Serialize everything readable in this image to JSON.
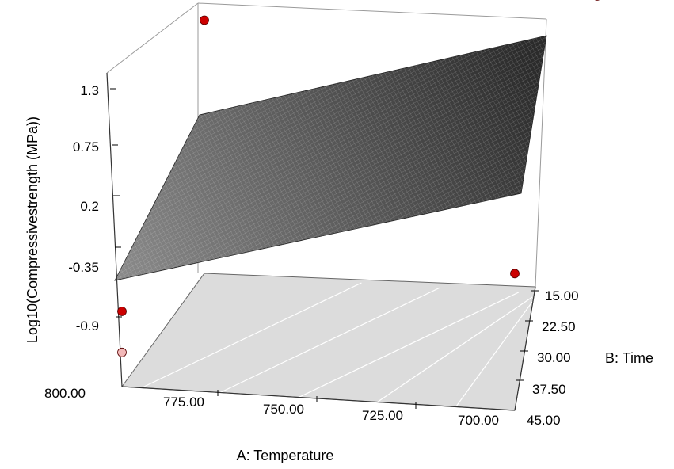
{
  "chart_data": {
    "type": "surface-3d",
    "title": "",
    "x_axis": {
      "label": "A: Temperature",
      "tick_labels": [
        "800.00",
        "775.00",
        "750.00",
        "725.00",
        "700.00"
      ],
      "range": [
        700,
        800
      ]
    },
    "y_axis": {
      "label": "B: Time",
      "tick_labels": [
        "15.00",
        "22.50",
        "30.00",
        "37.50",
        "45.00"
      ],
      "range": [
        15,
        45
      ]
    },
    "z_axis": {
      "label": "Log10(Compressivestrength (MPa))",
      "tick_labels": [
        "1.3",
        "0.75",
        "0.2",
        "-0.35",
        "-0.9"
      ],
      "range": [
        -0.9,
        1.3
      ]
    },
    "surface_corners": [
      {
        "temperature": 800,
        "time": 45,
        "z": -0.35
      },
      {
        "temperature": 800,
        "time": 15,
        "z": 0.95
      },
      {
        "temperature": 700,
        "time": 15,
        "z": 1.3
      },
      {
        "temperature": 700,
        "time": 45,
        "z": 0.1
      }
    ],
    "design_points": [
      {
        "temperature": 800,
        "time": 15,
        "z": 0.95,
        "color": "#cc0000"
      },
      {
        "temperature": 700,
        "time": 15,
        "z": 1.3,
        "color": "#cc0000"
      },
      {
        "temperature": 700,
        "time": 45,
        "z": 0.1,
        "color": "#cc0000"
      },
      {
        "temperature": 800,
        "time": 45,
        "z": -0.35,
        "color": "#cc0000"
      },
      {
        "temperature": 800,
        "time": 45,
        "z": -0.65,
        "color": "#f2b8b8"
      }
    ],
    "colors": {
      "surface_dark": "#2b2b2b",
      "surface_light": "#8a8a8a",
      "floor": "#dcdcdc",
      "point": "#cc0000"
    }
  }
}
